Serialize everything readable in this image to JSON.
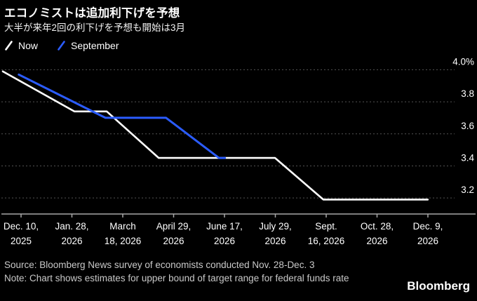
{
  "header": {
    "title": "エコノミストは追加利下げを予想",
    "subtitle": "大半が来年2回の利下げを予想も開始は3月"
  },
  "legend": [
    {
      "label": "Now",
      "color": "#ffffff"
    },
    {
      "label": "September",
      "color": "#2b5cff"
    }
  ],
  "chart_data": {
    "type": "line",
    "title": "エコノミストは追加利下げを予想",
    "subtitle": "大半が来年2回の利下げを予想も開始は3月",
    "unit": "%",
    "ylim": [
      3.1,
      4.05
    ],
    "grid": "dotted-horizontal",
    "legend_position": "top-left",
    "y_ticks": [
      {
        "label": "4.0%",
        "value": 4.0
      },
      {
        "label": "3.8",
        "value": 3.8
      },
      {
        "label": "3.6",
        "value": 3.6
      },
      {
        "label": "3.4",
        "value": 3.4
      },
      {
        "label": "3.2",
        "value": 3.2
      }
    ],
    "x_tick_labels": [
      [
        "Dec. 10,",
        "2025"
      ],
      [
        "Jan. 28,",
        "2026"
      ],
      [
        "March",
        "18, 2026"
      ],
      [
        "April 29,",
        "2026"
      ],
      [
        "June 17,",
        "2026"
      ],
      [
        "July 29,",
        "2026"
      ],
      [
        "Sept.",
        "16, 2026"
      ],
      [
        "Oct. 28,",
        "2026"
      ],
      [
        "Dec. 9,",
        "2026"
      ]
    ],
    "series": [
      {
        "name": "Now",
        "color": "#ffffff",
        "points": [
          {
            "x_frac": 0.0,
            "value": 3.99
          },
          {
            "x_frac": 0.157,
            "value": 3.74
          },
          {
            "x_frac": 0.228,
            "value": 3.74
          },
          {
            "x_frac": 0.342,
            "value": 3.45
          },
          {
            "x_frac": 0.597,
            "value": 3.45
          },
          {
            "x_frac": 0.703,
            "value": 3.19
          },
          {
            "x_frac": 0.932,
            "value": 3.19
          }
        ]
      },
      {
        "name": "September",
        "color": "#2b5cff",
        "points": [
          {
            "x_frac": 0.035,
            "value": 3.97
          },
          {
            "x_frac": 0.225,
            "value": 3.7
          },
          {
            "x_frac": 0.358,
            "value": 3.7
          },
          {
            "x_frac": 0.474,
            "value": 3.45
          },
          {
            "x_frac": 0.487,
            "value": 3.45
          }
        ]
      }
    ]
  },
  "footer": {
    "source": "Source: Bloomberg News survey of economists conducted Nov. 28-Dec. 3",
    "note": "Note: Chart shows estimates for upper bound of target range for federal funds rate",
    "brand": "Bloomberg"
  }
}
